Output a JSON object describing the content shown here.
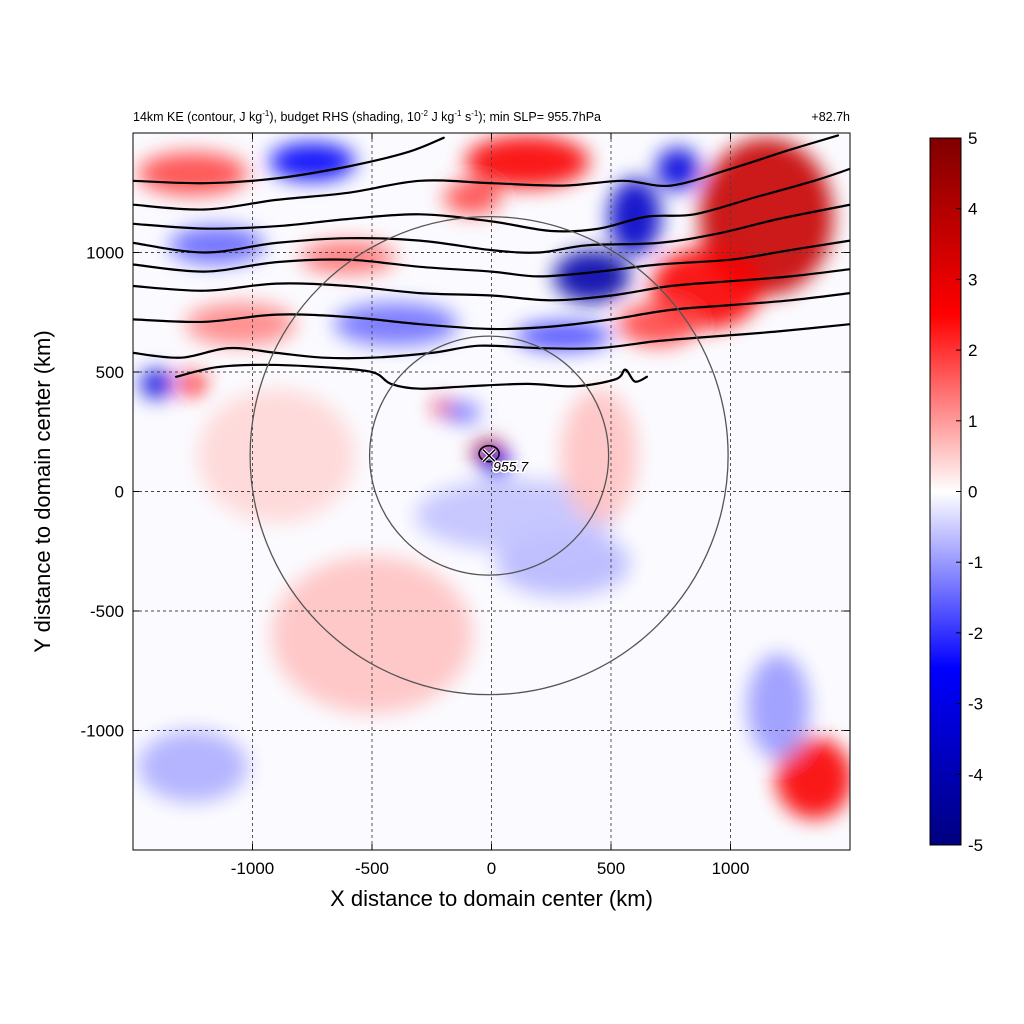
{
  "chart_data": {
    "type": "heatmap",
    "title": "14km KE (contour, J kg-1), budget RHS (shading, 10-2 J kg-1 s-1); min SLP= 955.7hPa",
    "title_parts": {
      "p1": "14km KE (contour, J kg",
      "e1": "-1",
      "p2": "), budget RHS (shading, 10",
      "e2": "-2",
      "p3": " J kg",
      "e3": "-1",
      "p4": " s",
      "e4": "-1",
      "p5": "); min SLP= 955.7hPa"
    },
    "time_label": "+82.7h",
    "xlabel": "X distance to domain center (km)",
    "ylabel": "Y distance to domain center (km)",
    "xlim": [
      -1500,
      1500
    ],
    "ylim": [
      -1500,
      1500
    ],
    "xticks": [
      -1000,
      -500,
      0,
      500,
      1000
    ],
    "yticks": [
      -1000,
      -500,
      0,
      500,
      1000
    ],
    "xtick_labels": [
      "-1000",
      "-500",
      "0",
      "500",
      "1000"
    ],
    "ytick_labels": [
      "-1000",
      "-500",
      "0",
      "500",
      "1000"
    ],
    "grid": "dashed",
    "colorbar": {
      "min": -5,
      "max": 5,
      "ticks": [
        5,
        4,
        3,
        2,
        1,
        0,
        -1,
        -2,
        -3,
        -4,
        -5
      ],
      "tick_labels": [
        "5",
        "4",
        "3",
        "2",
        "1",
        "0",
        "-1",
        "-2",
        "-3",
        "-4",
        "-5"
      ],
      "colormap": "blue-white-red",
      "colors": [
        "#00007f",
        "#0000ff",
        "#ffffff",
        "#ff0000",
        "#7f0000"
      ]
    },
    "storm_center": {
      "x": -10,
      "y": 150,
      "label": "955.7"
    },
    "range_rings": [
      {
        "center_x": -10,
        "center_y": 150,
        "radius": 500
      },
      {
        "center_x": -10,
        "center_y": 150,
        "radius": 1000
      }
    ],
    "shading_blobs": [
      {
        "x": -10,
        "y": 160,
        "rx": 70,
        "ry": 55,
        "v": 4.6
      },
      {
        "x": 20,
        "y": 110,
        "rx": 60,
        "ry": 50,
        "v": -2.6
      },
      {
        "x": -200,
        "y": 350,
        "rx": 45,
        "ry": 35,
        "v": 3.0
      },
      {
        "x": -120,
        "y": 330,
        "rx": 70,
        "ry": 40,
        "v": -1.6
      },
      {
        "x": 420,
        "y": 900,
        "rx": 160,
        "ry": 110,
        "v": -4.2
      },
      {
        "x": 600,
        "y": 1150,
        "rx": 110,
        "ry": 160,
        "v": -3.6
      },
      {
        "x": 780,
        "y": 1350,
        "rx": 90,
        "ry": 90,
        "v": -3.2
      },
      {
        "x": 1150,
        "y": 1150,
        "rx": 280,
        "ry": 330,
        "v": 3.6
      },
      {
        "x": 900,
        "y": 850,
        "rx": 230,
        "ry": 170,
        "v": 2.6
      },
      {
        "x": 700,
        "y": 700,
        "rx": 170,
        "ry": 90,
        "v": 1.8
      },
      {
        "x": 150,
        "y": 1380,
        "rx": 260,
        "ry": 110,
        "v": 2.6
      },
      {
        "x": -80,
        "y": 1230,
        "rx": 120,
        "ry": 70,
        "v": 1.8
      },
      {
        "x": -750,
        "y": 1380,
        "rx": 180,
        "ry": 80,
        "v": -2.6
      },
      {
        "x": -1250,
        "y": 1330,
        "rx": 230,
        "ry": 90,
        "v": 1.8
      },
      {
        "x": -1150,
        "y": 1030,
        "rx": 200,
        "ry": 80,
        "v": -1.5
      },
      {
        "x": -600,
        "y": 980,
        "rx": 200,
        "ry": 70,
        "v": 1.4
      },
      {
        "x": -400,
        "y": 700,
        "rx": 260,
        "ry": 90,
        "v": -1.4
      },
      {
        "x": -1050,
        "y": 700,
        "rx": 230,
        "ry": 90,
        "v": 1.2
      },
      {
        "x": -1400,
        "y": 450,
        "rx": 70,
        "ry": 60,
        "v": -3.2
      },
      {
        "x": -1250,
        "y": 450,
        "rx": 60,
        "ry": 50,
        "v": 2.2
      },
      {
        "x": 300,
        "y": 650,
        "rx": 200,
        "ry": 60,
        "v": -1.8
      },
      {
        "x": 1350,
        "y": -1200,
        "rx": 160,
        "ry": 170,
        "v": 2.6
      },
      {
        "x": 1200,
        "y": -900,
        "rx": 130,
        "ry": 220,
        "v": -1.0
      },
      {
        "x": -1250,
        "y": -1150,
        "rx": 230,
        "ry": 150,
        "v": -0.8
      },
      {
        "x": -500,
        "y": -600,
        "rx": 420,
        "ry": 330,
        "v": 0.6
      },
      {
        "x": 300,
        "y": -300,
        "rx": 280,
        "ry": 140,
        "v": -0.7
      },
      {
        "x": 100,
        "y": -100,
        "rx": 420,
        "ry": 150,
        "v": -0.6
      },
      {
        "x": 450,
        "y": 150,
        "rx": 160,
        "ry": 280,
        "v": 0.6
      },
      {
        "x": -900,
        "y": 150,
        "rx": 330,
        "ry": 280,
        "v": 0.4
      }
    ],
    "ke_contours": [
      {
        "points": [
          [
            -1500,
            1300
          ],
          [
            -1200,
            1290
          ],
          [
            -900,
            1310
          ],
          [
            -600,
            1360
          ],
          [
            -350,
            1420
          ],
          [
            -200,
            1480
          ]
        ]
      },
      {
        "points": [
          [
            -1500,
            1200
          ],
          [
            -1200,
            1180
          ],
          [
            -900,
            1220
          ],
          [
            -600,
            1250
          ],
          [
            -300,
            1300
          ],
          [
            0,
            1290
          ],
          [
            300,
            1280
          ],
          [
            550,
            1300
          ],
          [
            750,
            1280
          ],
          [
            1000,
            1350
          ],
          [
            1250,
            1430
          ],
          [
            1450,
            1490
          ]
        ]
      },
      {
        "points": [
          [
            -1500,
            1120
          ],
          [
            -1200,
            1100
          ],
          [
            -900,
            1110
          ],
          [
            -600,
            1140
          ],
          [
            -300,
            1160
          ],
          [
            0,
            1130
          ],
          [
            250,
            1090
          ],
          [
            450,
            1100
          ],
          [
            650,
            1150
          ],
          [
            850,
            1160
          ],
          [
            1100,
            1230
          ],
          [
            1350,
            1300
          ],
          [
            1500,
            1350
          ]
        ]
      },
      {
        "points": [
          [
            -1500,
            1040
          ],
          [
            -1200,
            1000
          ],
          [
            -900,
            1040
          ],
          [
            -600,
            1060
          ],
          [
            -300,
            1050
          ],
          [
            0,
            1010
          ],
          [
            200,
            1000
          ],
          [
            400,
            1030
          ],
          [
            700,
            1040
          ],
          [
            950,
            1080
          ],
          [
            1200,
            1140
          ],
          [
            1500,
            1200
          ]
        ]
      },
      {
        "points": [
          [
            -1500,
            950
          ],
          [
            -1200,
            920
          ],
          [
            -900,
            960
          ],
          [
            -600,
            970
          ],
          [
            -300,
            940
          ],
          [
            0,
            920
          ],
          [
            200,
            900
          ],
          [
            450,
            920
          ],
          [
            700,
            950
          ],
          [
            1000,
            970
          ],
          [
            1250,
            1010
          ],
          [
            1500,
            1050
          ]
        ]
      },
      {
        "points": [
          [
            -1500,
            860
          ],
          [
            -1200,
            840
          ],
          [
            -900,
            870
          ],
          [
            -600,
            860
          ],
          [
            -300,
            830
          ],
          [
            0,
            820
          ],
          [
            250,
            800
          ],
          [
            500,
            820
          ],
          [
            750,
            860
          ],
          [
            1000,
            880
          ],
          [
            1250,
            900
          ],
          [
            1500,
            930
          ]
        ]
      },
      {
        "points": [
          [
            -1500,
            720
          ],
          [
            -1200,
            710
          ],
          [
            -900,
            740
          ],
          [
            -600,
            730
          ],
          [
            -300,
            700
          ],
          [
            0,
            680
          ],
          [
            250,
            690
          ],
          [
            500,
            720
          ],
          [
            750,
            760
          ],
          [
            1000,
            780
          ],
          [
            1250,
            800
          ],
          [
            1500,
            830
          ]
        ]
      },
      {
        "points": [
          [
            -1500,
            580
          ],
          [
            -1300,
            560
          ],
          [
            -1100,
            600
          ],
          [
            -900,
            580
          ],
          [
            -700,
            560
          ],
          [
            -500,
            560
          ],
          [
            -250,
            580
          ],
          [
            -50,
            610
          ],
          [
            200,
            600
          ],
          [
            450,
            600
          ],
          [
            700,
            630
          ],
          [
            950,
            650
          ],
          [
            1200,
            670
          ],
          [
            1500,
            700
          ]
        ]
      },
      {
        "points": [
          [
            -1320,
            480
          ],
          [
            -1150,
            520
          ],
          [
            -950,
            530
          ],
          [
            -700,
            520
          ],
          [
            -500,
            500
          ],
          [
            -420,
            450
          ],
          [
            -300,
            430
          ],
          [
            -100,
            440
          ],
          [
            150,
            450
          ],
          [
            350,
            440
          ],
          [
            520,
            470
          ],
          [
            560,
            510
          ],
          [
            600,
            460
          ],
          [
            650,
            480
          ]
        ]
      }
    ]
  }
}
